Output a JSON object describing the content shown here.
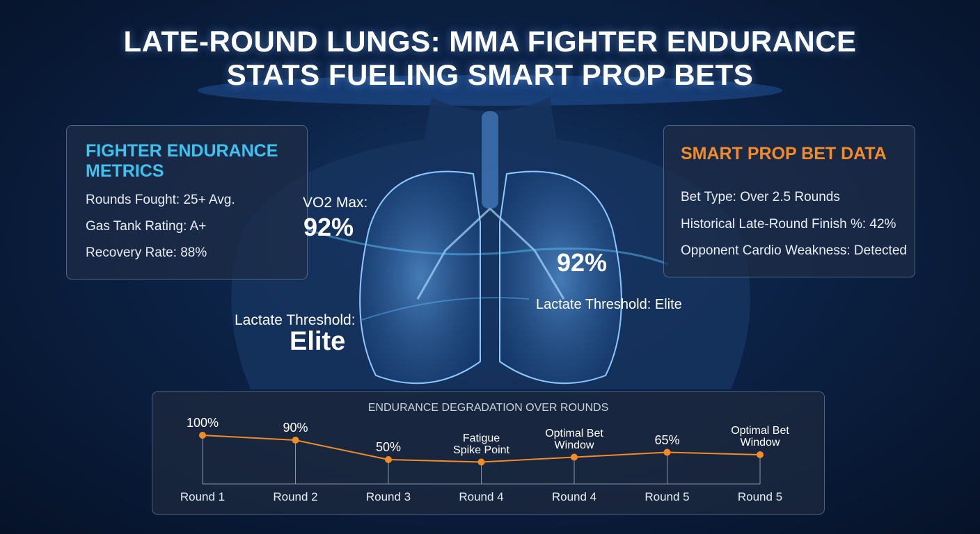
{
  "header": {
    "title_line1": "LATE-ROUND LUNGS: MMA FIGHTER ENDURANCE",
    "title_line2": "STATS FUELING SMART PROP BETS"
  },
  "left_panel": {
    "title": "FIGHTER ENDURANCE METRICS",
    "items": [
      "Rounds Fought: 25+ Avg.",
      "Gas Tank Rating: A+",
      "Recovery Rate: 88%"
    ]
  },
  "right_panel": {
    "title": "SMART PROP BET DATA",
    "items": [
      "Bet Type: Over 2.5 Rounds",
      "Historical Late-Round Finish %: 42%",
      "Opponent Cardio Weakness: Detected"
    ]
  },
  "callouts": {
    "vo2_label": "VO2 Max:",
    "vo2_value": "92%",
    "right_value": "92%",
    "right_lactate": "Lactate Threshold: Elite",
    "lactate_label": "Lactate Threshold:",
    "lactate_value": "Elite"
  },
  "chart_data": {
    "type": "line",
    "title": "ENDURANCE DEGRADATION OVER ROUNDS",
    "categories": [
      "Round 1",
      "Round 2",
      "Round 3",
      "Round 4",
      "Round 4",
      "Round 5",
      "Round 5"
    ],
    "values": [
      100,
      90,
      50,
      45,
      55,
      65,
      60
    ],
    "value_labels": [
      "100%",
      "90%",
      "50%",
      "Fatigue Spike Point",
      "Optimal Bet Window",
      "65%",
      "Optimal Bet Window"
    ],
    "color": "#f28c28",
    "ylim": [
      0,
      100
    ]
  }
}
